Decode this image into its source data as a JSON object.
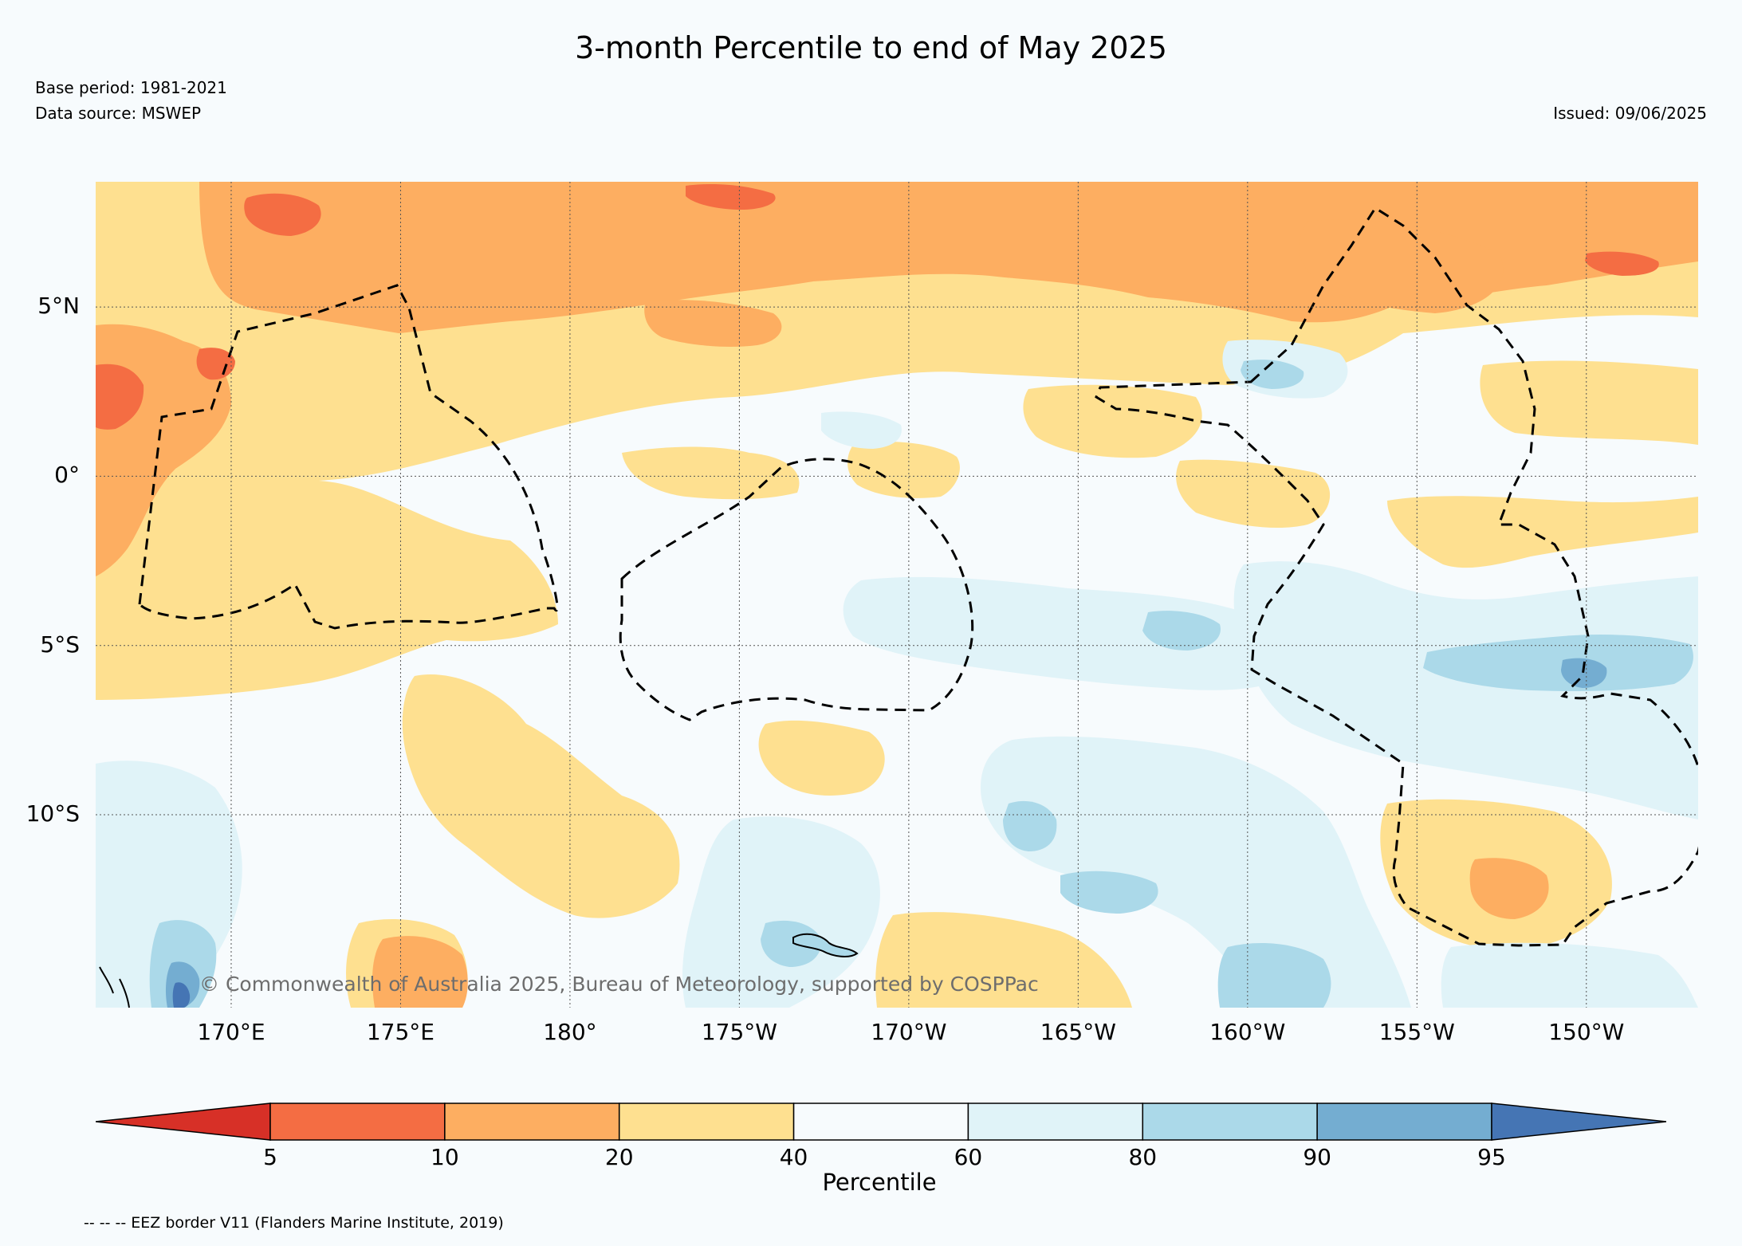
{
  "title": "3-month Percentile to end of May 2025",
  "base_period": "Base period: 1981-2021",
  "data_source": "Data source: MSWEP",
  "issued": "Issued: 09/06/2025",
  "copyright": "© Commonwealth of Australia 2025, Bureau of Meteorology, supported by COSPPac",
  "eez_note": "-- -- -- EEZ border V11 (Flanders Marine Institute, 2019)",
  "map": {
    "lon_range": [
      166.0,
      213.3
    ],
    "lat_range": [
      -15.7,
      8.7
    ],
    "lat_ticks": [
      {
        "value": 5,
        "label": "5°N"
      },
      {
        "value": 0,
        "label": "0°"
      },
      {
        "value": -5,
        "label": "5°S"
      },
      {
        "value": -10,
        "label": "10°S"
      }
    ],
    "lon_ticks": [
      {
        "value": 170,
        "label": "170°E"
      },
      {
        "value": 175,
        "label": "175°E"
      },
      {
        "value": 180,
        "label": "180°"
      },
      {
        "value": 185,
        "label": "175°W"
      },
      {
        "value": 190,
        "label": "170°W"
      },
      {
        "value": 195,
        "label": "165°W"
      },
      {
        "value": 200,
        "label": "160°W"
      },
      {
        "value": 205,
        "label": "155°W"
      },
      {
        "value": 210,
        "label": "150°W"
      }
    ],
    "gridlines": true,
    "category_colors": {
      "lt5": "#d73027",
      "c5_10": "#f46d43",
      "c10_20": "#fdae61",
      "c20_40": "#fee090",
      "c40_60": "#f7fbfd",
      "c60_80": "#e0f3f8",
      "c80_90": "#abd9e9",
      "c90_95": "#74add1",
      "gt95": "#4575b4"
    }
  },
  "colorbar": {
    "label": "Percentile",
    "ticks": [
      "5",
      "10",
      "20",
      "40",
      "60",
      "80",
      "90",
      "95"
    ],
    "colors": [
      "#d73027",
      "#f46d43",
      "#fdae61",
      "#fee090",
      "#f7fbfd",
      "#e0f3f8",
      "#abd9e9",
      "#74add1",
      "#4575b4"
    ]
  }
}
